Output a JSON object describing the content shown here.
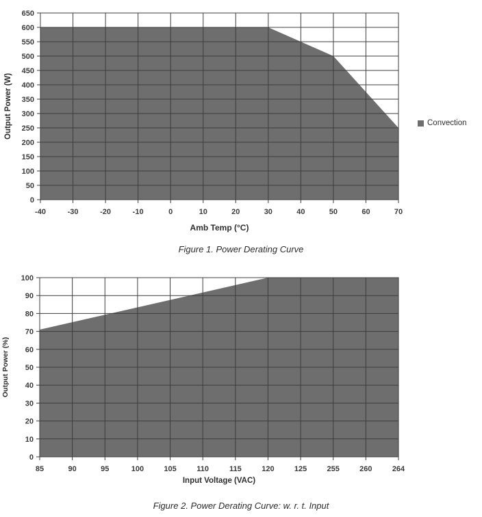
{
  "page": {
    "background": "#ffffff"
  },
  "chart_data": [
    {
      "type": "area",
      "caption": "Figure 1. Power Derating Curve",
      "xlabel": "Amb Temp (°C)",
      "ylabel": "Output Power (W)",
      "categories": [
        -40,
        -30,
        -20,
        -10,
        0,
        10,
        20,
        30,
        40,
        50,
        60,
        70
      ],
      "y_ticks": [
        0,
        50,
        100,
        150,
        200,
        250,
        300,
        350,
        400,
        450,
        500,
        550,
        600,
        650
      ],
      "ylim": [
        0,
        650
      ],
      "grid": true,
      "legend_position": "right",
      "series": [
        {
          "name": "Convection",
          "points": [
            [
              -40,
              600
            ],
            [
              30,
              600
            ],
            [
              40,
              550
            ],
            [
              50,
              500
            ],
            [
              70,
              250
            ]
          ]
        }
      ],
      "colors": {
        "fill": "#6e6e6e",
        "grid": "#3c3c3c",
        "text": "#3a3a3a"
      }
    },
    {
      "type": "area",
      "caption": "Figure 2. Power Derating Curve: w. r. t. Input",
      "xlabel": "Input Voltage (VAC)",
      "ylabel": "Output Power (%)",
      "categories": [
        85,
        90,
        95,
        100,
        105,
        110,
        115,
        120,
        125,
        255,
        260,
        264
      ],
      "y_ticks": [
        0,
        10,
        20,
        30,
        40,
        50,
        60,
        70,
        80,
        90,
        100
      ],
      "ylim": [
        0,
        100
      ],
      "grid": true,
      "legend_position": "none",
      "series": [
        {
          "name": "Output Power",
          "points": [
            [
              85,
              71
            ],
            [
              120,
              100
            ],
            [
              264,
              100
            ]
          ]
        }
      ],
      "colors": {
        "fill": "#6e6e6e",
        "grid": "#3c3c3c",
        "text": "#3a3a3a"
      }
    }
  ]
}
